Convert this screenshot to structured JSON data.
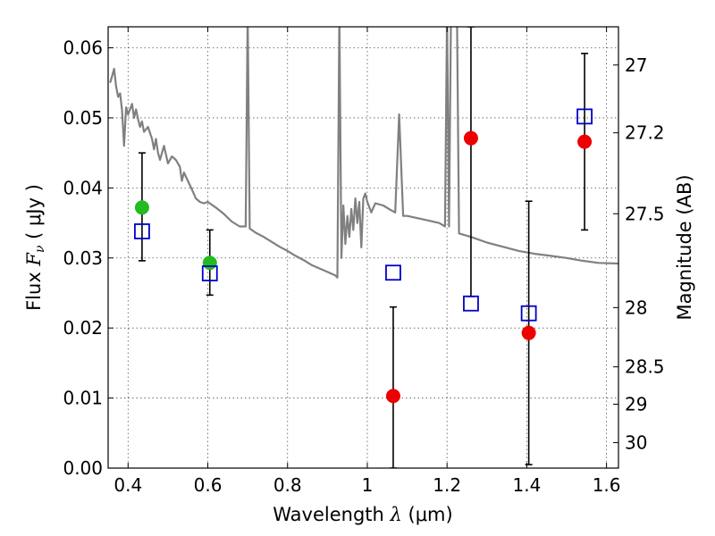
{
  "chart_data": {
    "type": "scatter",
    "xlabel": {
      "prefix": "Wavelength ",
      "symbol": "λ",
      "unit": " (μm)"
    },
    "ylabel": {
      "prefix": "Flux  ",
      "symbol": "F",
      "subscript": "ν",
      "unit": "  ( μJy )"
    },
    "ylabel_right": "Magnitude (AB)",
    "xlim": [
      0.35,
      1.63
    ],
    "ylim": [
      0.0,
      0.063
    ],
    "x_ticks": [
      0.4,
      0.6,
      0.8,
      1.0,
      1.2,
      1.4,
      1.6
    ],
    "x_tick_labels": [
      "0.4",
      "0.6",
      "0.8",
      "1",
      "1.2",
      "1.4",
      "1.6"
    ],
    "y_ticks": [
      0.0,
      0.01,
      0.02,
      0.03,
      0.04,
      0.05,
      0.06
    ],
    "y_tick_labels": [
      "0.00",
      "0.01",
      "0.02",
      "0.03",
      "0.04",
      "0.05",
      "0.06"
    ],
    "right_ticks": [
      27,
      27.2,
      27.5,
      28,
      28.5,
      29,
      30
    ],
    "right_tick_labels": [
      "27",
      "27.2",
      "27.5",
      "28",
      "28.5",
      "29",
      "30"
    ],
    "grid": true,
    "colors": {
      "model": "#808080",
      "green": "#22bb22",
      "red": "#ee0000",
      "blue": "#0000cc",
      "errorbar": "#000000"
    },
    "series": [
      {
        "kind": "observed-green",
        "points": [
          {
            "x": 0.435,
            "y": 0.0372,
            "err_low": 0.0296,
            "err_high": 0.045
          },
          {
            "x": 0.605,
            "y": 0.0293,
            "err_low": 0.0247,
            "err_high": 0.034
          }
        ]
      },
      {
        "kind": "observed-red",
        "points": [
          {
            "x": 1.065,
            "y": 0.0103,
            "err_low": 0.0,
            "err_high": 0.023
          },
          {
            "x": 1.26,
            "y": 0.0471,
            "err_low": 0.0245,
            "err_high": 0.063
          },
          {
            "x": 1.405,
            "y": 0.0193,
            "err_low": 0.0005,
            "err_high": 0.0381
          },
          {
            "x": 1.545,
            "y": 0.0466,
            "err_low": 0.034,
            "err_high": 0.0592
          }
        ]
      },
      {
        "kind": "model-photometry",
        "points": [
          {
            "x": 0.435,
            "y": 0.0338
          },
          {
            "x": 0.605,
            "y": 0.0278
          },
          {
            "x": 1.065,
            "y": 0.0279
          },
          {
            "x": 1.26,
            "y": 0.0235
          },
          {
            "x": 1.405,
            "y": 0.0221
          },
          {
            "x": 1.545,
            "y": 0.0502
          }
        ]
      }
    ],
    "model_spectrum": [
      [
        0.355,
        0.055
      ],
      [
        0.36,
        0.056
      ],
      [
        0.365,
        0.057
      ],
      [
        0.37,
        0.0545
      ],
      [
        0.375,
        0.053
      ],
      [
        0.38,
        0.0535
      ],
      [
        0.385,
        0.051
      ],
      [
        0.39,
        0.046
      ],
      [
        0.395,
        0.0515
      ],
      [
        0.4,
        0.0505
      ],
      [
        0.41,
        0.052
      ],
      [
        0.415,
        0.05
      ],
      [
        0.42,
        0.0512
      ],
      [
        0.425,
        0.0498
      ],
      [
        0.43,
        0.0487
      ],
      [
        0.435,
        0.0495
      ],
      [
        0.44,
        0.048
      ],
      [
        0.45,
        0.0487
      ],
      [
        0.46,
        0.047
      ],
      [
        0.465,
        0.0455
      ],
      [
        0.47,
        0.047
      ],
      [
        0.475,
        0.045
      ],
      [
        0.48,
        0.044
      ],
      [
        0.49,
        0.046
      ],
      [
        0.5,
        0.0435
      ],
      [
        0.51,
        0.0445
      ],
      [
        0.52,
        0.044
      ],
      [
        0.53,
        0.043
      ],
      [
        0.535,
        0.041
      ],
      [
        0.54,
        0.0422
      ],
      [
        0.55,
        0.041
      ],
      [
        0.56,
        0.0398
      ],
      [
        0.57,
        0.0385
      ],
      [
        0.58,
        0.038
      ],
      [
        0.59,
        0.0378
      ],
      [
        0.6,
        0.038
      ],
      [
        0.62,
        0.0372
      ],
      [
        0.64,
        0.0363
      ],
      [
        0.66,
        0.0352
      ],
      [
        0.68,
        0.0345
      ],
      [
        0.695,
        0.0345
      ],
      [
        0.7,
        0.065
      ],
      [
        0.705,
        0.0342
      ],
      [
        0.72,
        0.0336
      ],
      [
        0.74,
        0.033
      ],
      [
        0.76,
        0.0323
      ],
      [
        0.78,
        0.0316
      ],
      [
        0.8,
        0.031
      ],
      [
        0.82,
        0.0303
      ],
      [
        0.84,
        0.0297
      ],
      [
        0.86,
        0.029
      ],
      [
        0.88,
        0.0285
      ],
      [
        0.9,
        0.028
      ],
      [
        0.92,
        0.0275
      ],
      [
        0.925,
        0.0272
      ],
      [
        0.93,
        0.065
      ],
      [
        0.935,
        0.03
      ],
      [
        0.94,
        0.0375
      ],
      [
        0.945,
        0.032
      ],
      [
        0.95,
        0.036
      ],
      [
        0.955,
        0.033
      ],
      [
        0.96,
        0.037
      ],
      [
        0.965,
        0.034
      ],
      [
        0.97,
        0.0385
      ],
      [
        0.975,
        0.035
      ],
      [
        0.98,
        0.038
      ],
      [
        0.985,
        0.0315
      ],
      [
        0.99,
        0.0385
      ],
      [
        0.995,
        0.0392
      ],
      [
        1.0,
        0.038
      ],
      [
        1.01,
        0.0365
      ],
      [
        1.02,
        0.0378
      ],
      [
        1.04,
        0.0375
      ],
      [
        1.06,
        0.0368
      ],
      [
        1.07,
        0.0365
      ],
      [
        1.08,
        0.0505
      ],
      [
        1.09,
        0.036
      ],
      [
        1.1,
        0.036
      ],
      [
        1.14,
        0.0355
      ],
      [
        1.18,
        0.035
      ],
      [
        1.195,
        0.0345
      ],
      [
        1.2,
        0.065
      ],
      [
        1.205,
        0.0345
      ],
      [
        1.21,
        0.065
      ],
      [
        1.225,
        0.065
      ],
      [
        1.23,
        0.0335
      ],
      [
        1.26,
        0.033
      ],
      [
        1.3,
        0.0322
      ],
      [
        1.34,
        0.0316
      ],
      [
        1.38,
        0.031
      ],
      [
        1.42,
        0.0306
      ],
      [
        1.46,
        0.0303
      ],
      [
        1.5,
        0.03
      ],
      [
        1.54,
        0.0296
      ],
      [
        1.58,
        0.0293
      ],
      [
        1.63,
        0.0292
      ]
    ]
  }
}
